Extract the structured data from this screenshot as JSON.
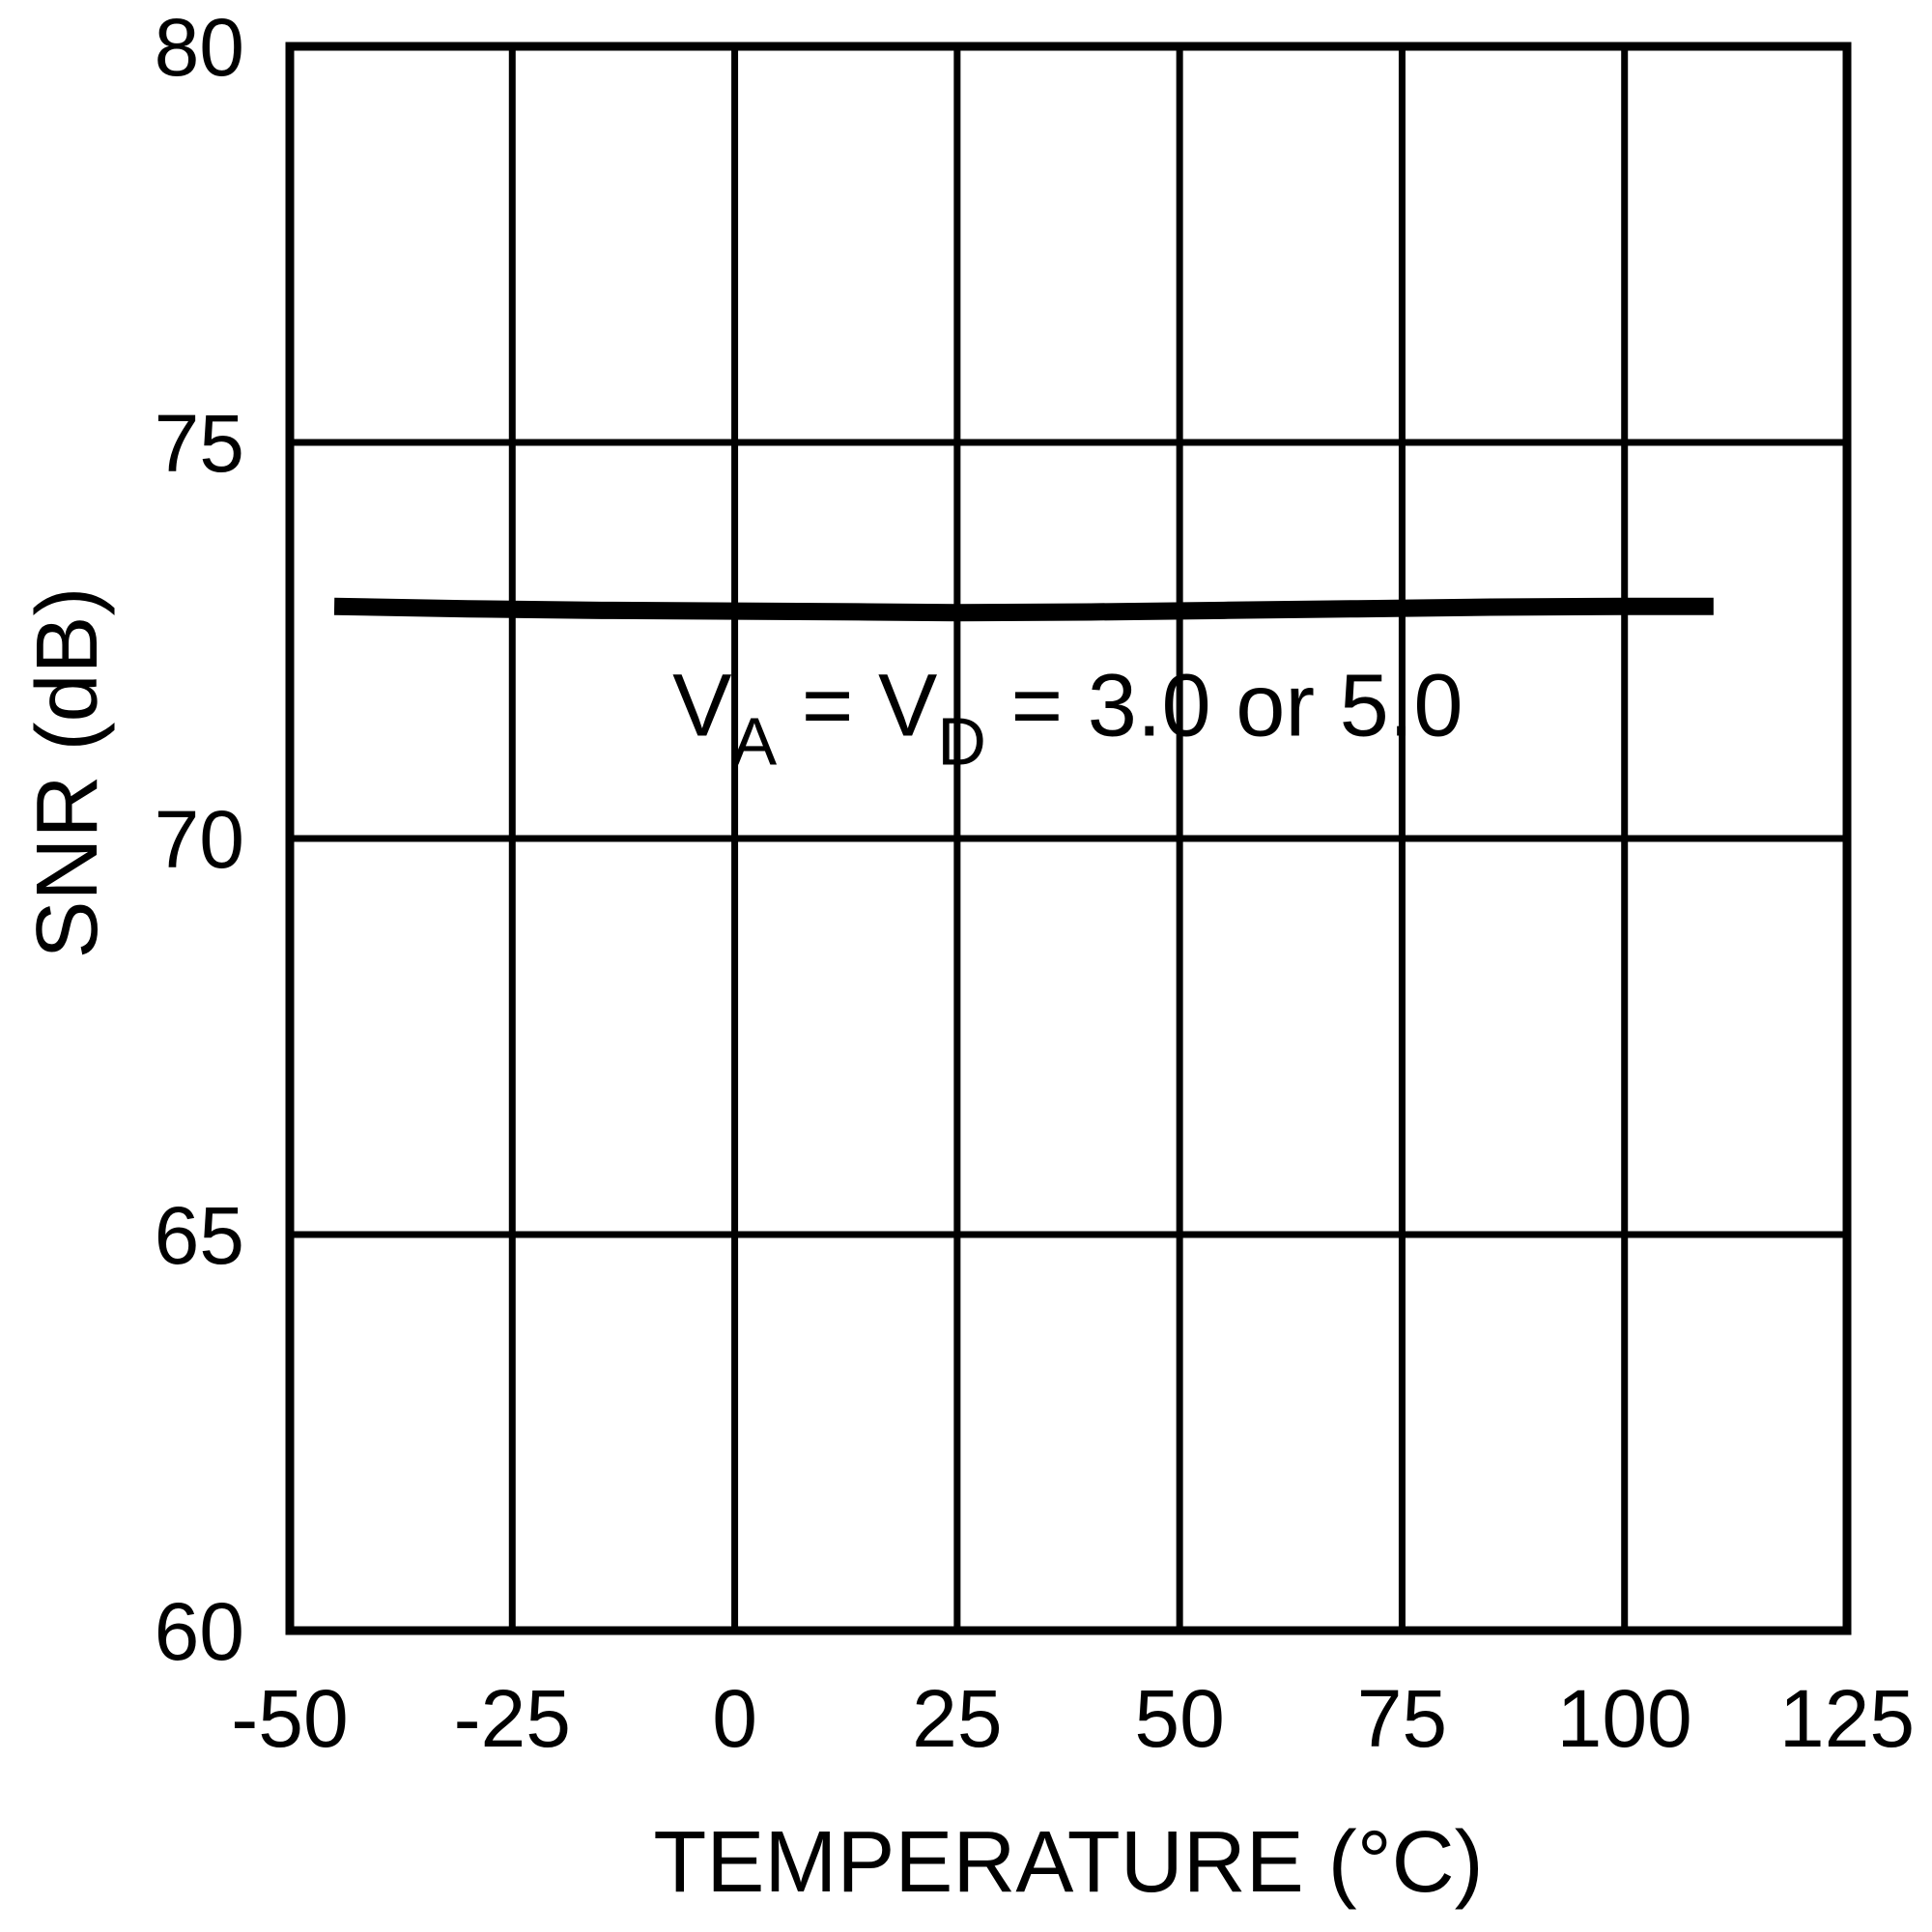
{
  "figure": {
    "background_color": "#ffffff",
    "foreground_color": "#000000"
  },
  "chart_data": {
    "type": "line",
    "title": "",
    "xlabel": "TEMPERATURE (°C)",
    "ylabel": "SNR (dB)",
    "xlim": [
      -50,
      125
    ],
    "ylim": [
      60,
      80
    ],
    "xticks": [
      -50,
      -25,
      0,
      25,
      50,
      75,
      100,
      125
    ],
    "yticks": [
      60,
      65,
      70,
      75,
      80
    ],
    "grid": true,
    "legend": "none",
    "grid_color": "#000000",
    "line_color": "#000000",
    "text_color": "#000000",
    "annotation": {
      "segments": [
        {
          "text": "V",
          "sub": false
        },
        {
          "text": "A",
          "sub": true
        },
        {
          "text": " = V",
          "sub": false
        },
        {
          "text": "D",
          "sub": true
        },
        {
          "text": " = 3.0 or 5.0",
          "sub": false
        }
      ],
      "x": -7,
      "y": 71.3
    },
    "series": [
      {
        "name": "SNR",
        "x": [
          -45,
          -30,
          -15,
          0,
          15,
          25,
          40,
          55,
          70,
          85,
          100,
          110
        ],
        "y": [
          72.93,
          72.9,
          72.88,
          72.87,
          72.86,
          72.85,
          72.86,
          72.88,
          72.9,
          72.92,
          72.93,
          72.93
        ]
      }
    ]
  }
}
